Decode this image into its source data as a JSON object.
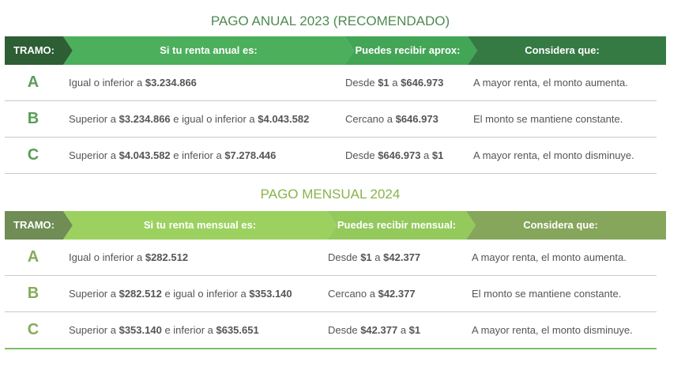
{
  "colors": {
    "annual_title": "#4f8a52",
    "monthly_title": "#8bb24c",
    "annual_tramo_bg": "#2e5e34",
    "annual_renta_bg": "#4caf5c",
    "annual_recibir_bg": "#43a556",
    "annual_considera_bg": "#367a43",
    "monthly_tramo_bg": "#6f8d54",
    "monthly_renta_bg": "#9cd160",
    "monthly_recibir_bg": "#94c95c",
    "monthly_considera_bg": "#86a65c",
    "annual_letter": "#5a9d5a",
    "monthly_letter": "#86ab5a"
  },
  "annual": {
    "title": "PAGO ANUAL 2023 (RECOMENDADO)",
    "headers": {
      "tramo": "TRAMO:",
      "renta": "Si tu renta anual es:",
      "recibir": "Puedes recibir aprox:",
      "considera": "Considera que:"
    },
    "rows": [
      {
        "letter": "A",
        "renta": [
          [
            "Igual o inferior a ",
            false
          ],
          [
            "$3.234.866",
            true
          ]
        ],
        "recibir": [
          [
            "Desde ",
            false
          ],
          [
            "$1",
            true
          ],
          [
            " a ",
            false
          ],
          [
            "$646.973",
            true
          ]
        ],
        "considera": "A mayor renta, el monto aumenta."
      },
      {
        "letter": "B",
        "renta": [
          [
            "Superior a ",
            false
          ],
          [
            "$3.234.866",
            true
          ],
          [
            " e igual o inferior a ",
            false
          ],
          [
            "$4.043.582",
            true
          ]
        ],
        "recibir": [
          [
            "Cercano a ",
            false
          ],
          [
            "$646.973",
            true
          ]
        ],
        "considera": "El monto se mantiene constante."
      },
      {
        "letter": "C",
        "renta": [
          [
            "Superior a ",
            false
          ],
          [
            "$4.043.582",
            true
          ],
          [
            " e inferior a ",
            false
          ],
          [
            "$7.278.446",
            true
          ]
        ],
        "recibir": [
          [
            "Desde ",
            false
          ],
          [
            "$646.973",
            true
          ],
          [
            " a ",
            false
          ],
          [
            "$1",
            true
          ]
        ],
        "considera": "A mayor renta, el monto disminuye."
      }
    ]
  },
  "monthly": {
    "title": "PAGO MENSUAL 2024",
    "headers": {
      "tramo": "TRAMO:",
      "renta": "Si tu renta mensual es:",
      "recibir": "Puedes recibir mensual:",
      "considera": "Considera que:"
    },
    "rows": [
      {
        "letter": "A",
        "renta": [
          [
            "Igual o inferior a ",
            false
          ],
          [
            "$282.512",
            true
          ]
        ],
        "recibir": [
          [
            "Desde ",
            false
          ],
          [
            "$1",
            true
          ],
          [
            " a ",
            false
          ],
          [
            "$42.377",
            true
          ]
        ],
        "considera": "A mayor renta, el monto aumenta."
      },
      {
        "letter": "B",
        "renta": [
          [
            "Superior a ",
            false
          ],
          [
            "$282.512",
            true
          ],
          [
            " e igual o inferior a ",
            false
          ],
          [
            "$353.140",
            true
          ]
        ],
        "recibir": [
          [
            "Cercano a ",
            false
          ],
          [
            "$42.377",
            true
          ]
        ],
        "considera": "El monto se mantiene constante."
      },
      {
        "letter": "C",
        "renta": [
          [
            "Superior a ",
            false
          ],
          [
            "$353.140",
            true
          ],
          [
            " e inferior a ",
            false
          ],
          [
            "$635.651",
            true
          ]
        ],
        "recibir": [
          [
            "Desde ",
            false
          ],
          [
            "$42.377",
            true
          ],
          [
            " a ",
            false
          ],
          [
            "$1",
            true
          ]
        ],
        "considera": "A mayor renta, el monto disminuye."
      }
    ]
  }
}
